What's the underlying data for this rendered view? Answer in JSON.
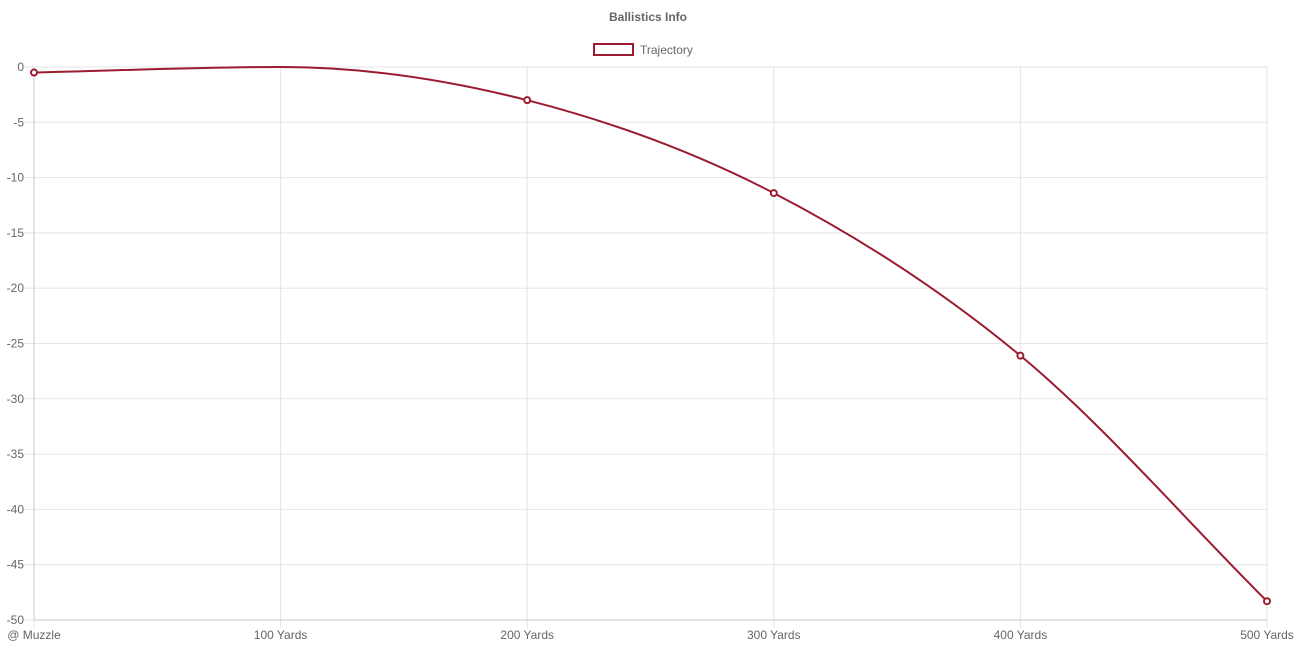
{
  "chart_data": {
    "type": "line",
    "title": "Ballistics Info",
    "categories": [
      "@ Muzzle",
      "100 Yards",
      "200 Yards",
      "300 Yards",
      "400 Yards",
      "500 Yards"
    ],
    "series": [
      {
        "name": "Trajectory",
        "values": [
          -0.5,
          0,
          -3.0,
          -11.4,
          -26.1,
          -48.3
        ],
        "color": "#9b1b30"
      }
    ],
    "yticks": [
      "0",
      "-5",
      "-10",
      "-15",
      "-20",
      "-25",
      "-30",
      "-35",
      "-40",
      "-45",
      "-50"
    ],
    "ylim": [
      -50,
      0
    ],
    "grid": true,
    "legend_position": "top-center",
    "xlabel": "",
    "ylabel": ""
  }
}
